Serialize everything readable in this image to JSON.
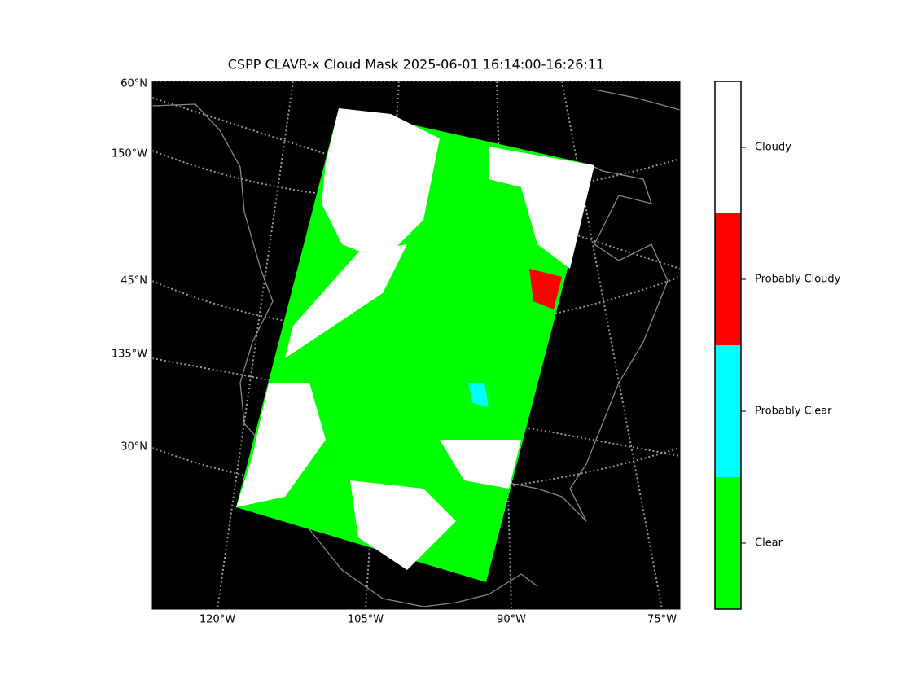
{
  "title": "CSPP CLAVR-x Cloud Mask 2025-06-01 16:14:00-16:26:11",
  "left_labels": [
    "60°N",
    "150°W",
    "45°N",
    "135°W",
    "30°N"
  ],
  "bottom_labels": [
    "120°W",
    "105°W",
    "90°W",
    "75°W"
  ],
  "colorbar": {
    "categories": [
      {
        "label": "Cloudy",
        "color": "#ffffff"
      },
      {
        "label": "Probably Cloudy",
        "color": "#ff0000"
      },
      {
        "label": "Probably Clear",
        "color": "#00ffff"
      },
      {
        "label": "Clear",
        "color": "#00ff00"
      }
    ]
  }
}
